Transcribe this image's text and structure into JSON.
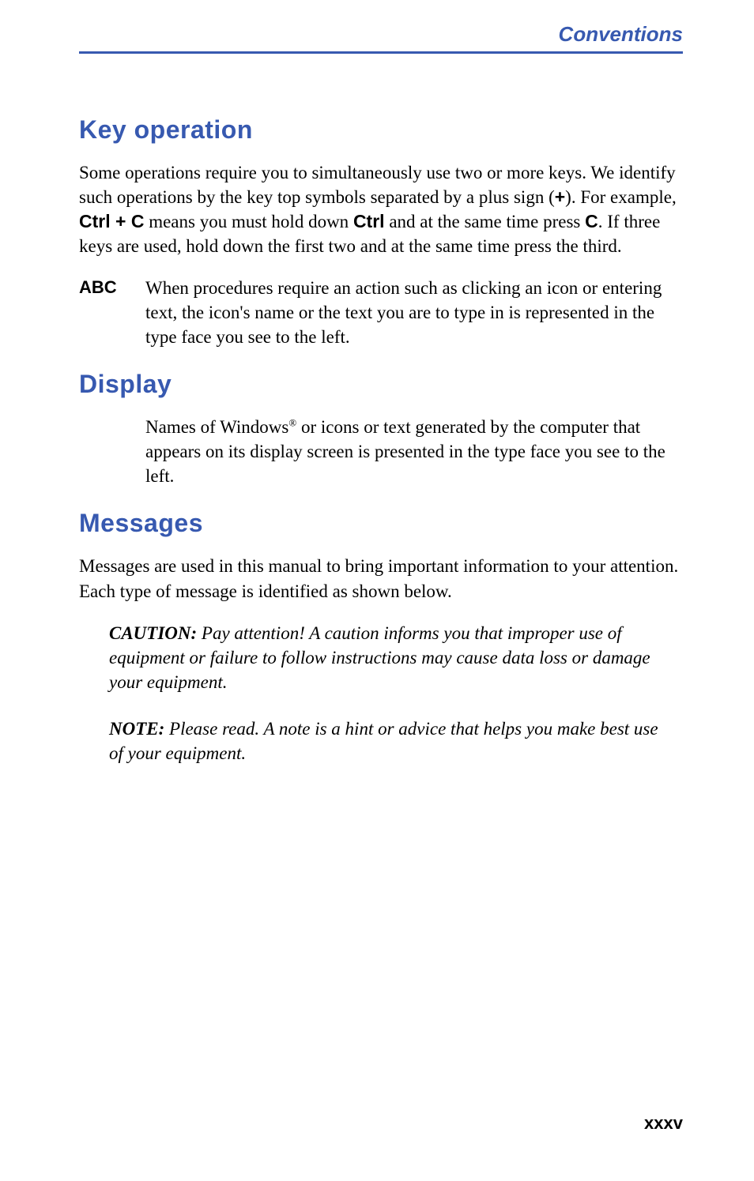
{
  "runningHead": "Conventions",
  "sections": {
    "keyOperation": {
      "title": "Key  operation",
      "para_parts": [
        "Some operations require you to simultaneously use two or more keys. We identify such operations by the key top symbols separated by a plus sign (",
        "+",
        ").  For example, ",
        "Ctrl + C",
        " means you must hold down ",
        "Ctrl",
        " and at the same time press ",
        "C",
        ". If three keys are used, hold down the first two and at the same time press the third."
      ],
      "abc_label": "ABC",
      "abc_body": "When procedures require an action such as clicking an icon or entering text, the icon's name or the text you are to type in is represented in the type face you see to the left."
    },
    "display": {
      "title": "Display",
      "body_pre": "Names of Windows",
      "reg": "®",
      "body_post": " or icons or text generated by the computer that appears on its display screen is presented in the type face you see to the left."
    },
    "messages": {
      "title": "Messages",
      "intro": "Messages are used in this manual to bring important information to your attention. Each type of message is identified as shown below.",
      "caution_label": "CAUTION:",
      "caution_body": " Pay attention! A caution informs you that improper use of equipment or failure to follow instructions may cause data loss or damage your equipment.",
      "note_label": "NOTE:",
      "note_body": " Please read. A note is a hint or advice that helps you make best use of your equipment."
    }
  },
  "pageNumber": "xxxv",
  "colors": {
    "accent": "#3759b0",
    "text": "#000000",
    "background": "#ffffff"
  }
}
